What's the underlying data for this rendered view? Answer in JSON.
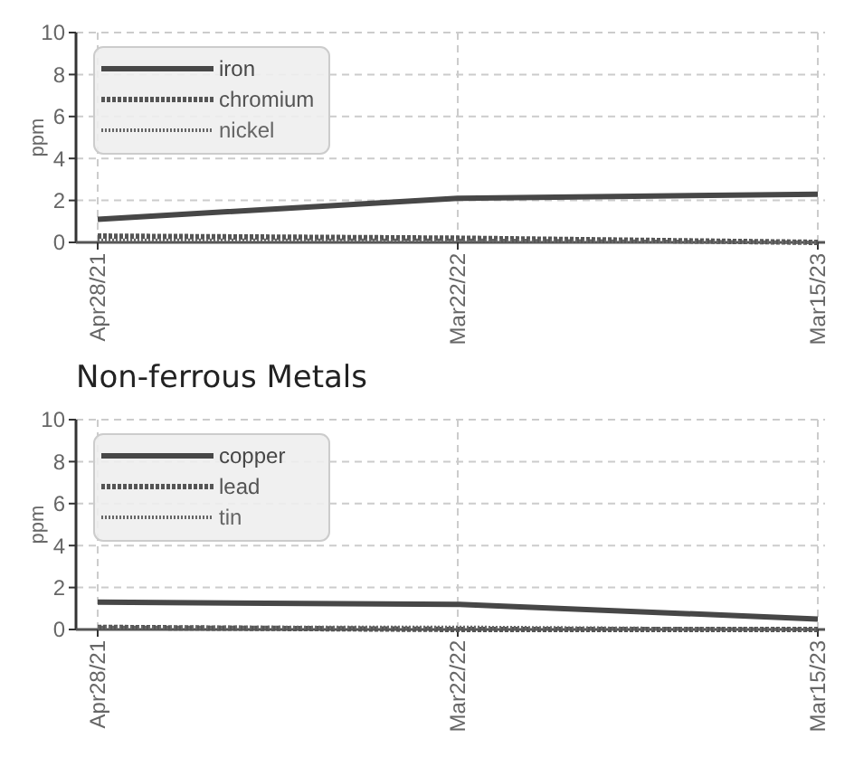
{
  "chart_data": [
    {
      "type": "line",
      "categories": [
        "Apr28/21",
        "Mar22/22",
        "Mar15/23"
      ],
      "ylabel": "ppm",
      "ylim": [
        0,
        10
      ],
      "yticks": [
        0,
        2,
        4,
        6,
        8,
        10
      ],
      "grid": true,
      "legend": "top left",
      "series": [
        {
          "name": "iron",
          "color": "#474747",
          "line_style": "solid",
          "values": [
            1.1,
            2.1,
            2.3
          ]
        },
        {
          "name": "chromium",
          "color": "#555555",
          "line_style": "dashed",
          "values": [
            0.3,
            0.2,
            0.0
          ]
        },
        {
          "name": "nickel",
          "color": "#666666",
          "line_style": "dotted",
          "values": [
            0.1,
            0.1,
            0.0
          ]
        }
      ]
    },
    {
      "type": "line",
      "title": "Non-ferrous Metals",
      "categories": [
        "Apr28/21",
        "Mar22/22",
        "Mar15/23"
      ],
      "ylabel": "ppm",
      "ylim": [
        0,
        10
      ],
      "yticks": [
        0,
        2,
        4,
        6,
        8,
        10
      ],
      "grid": true,
      "legend": "top left",
      "series": [
        {
          "name": "copper",
          "color": "#474747",
          "line_style": "solid",
          "values": [
            1.3,
            1.2,
            0.5
          ]
        },
        {
          "name": "lead",
          "color": "#555555",
          "line_style": "dashed",
          "values": [
            0.1,
            0.0,
            0.0
          ]
        },
        {
          "name": "tin",
          "color": "#666666",
          "line_style": "dotted",
          "values": [
            0.1,
            0.1,
            0.0
          ]
        }
      ]
    }
  ]
}
